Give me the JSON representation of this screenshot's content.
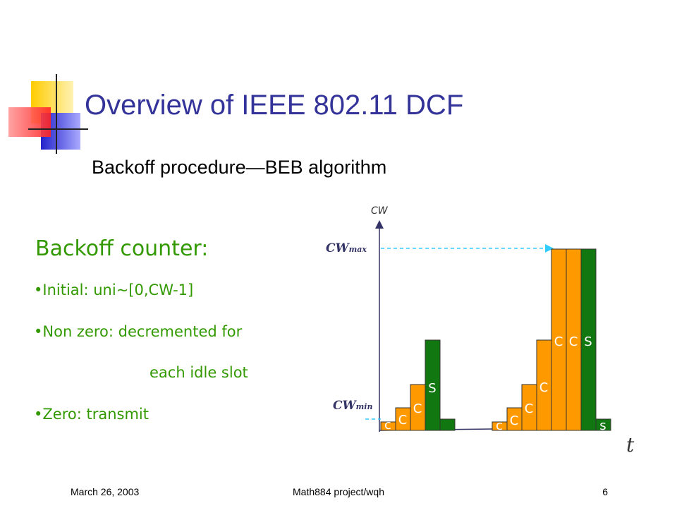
{
  "title": "Overview of IEEE 802.11 DCF",
  "subtitle": "Backoff procedure—BEB algorithm",
  "counter": {
    "heading": "Backoff counter:",
    "bullets": [
      [
        "Initial: uni~[0,CW-1]"
      ],
      [
        "Non zero: decremented for",
        "each idle slot"
      ],
      [
        "Zero: transmit"
      ]
    ]
  },
  "diagram": {
    "y_label": "CW",
    "x_label": "t",
    "cw_max": {
      "base": "CW",
      "sub": "max"
    },
    "cw_min": {
      "base": "CW",
      "sub": "min"
    },
    "group1_labels": [
      "c",
      "C",
      "C",
      "S"
    ],
    "group2_labels": [
      "c",
      "C",
      "C",
      "C",
      "C",
      "C",
      "S",
      "s"
    ]
  },
  "footer": {
    "date": "March 26, 2003",
    "project": "Math884 project/wqh",
    "page": "6"
  }
}
